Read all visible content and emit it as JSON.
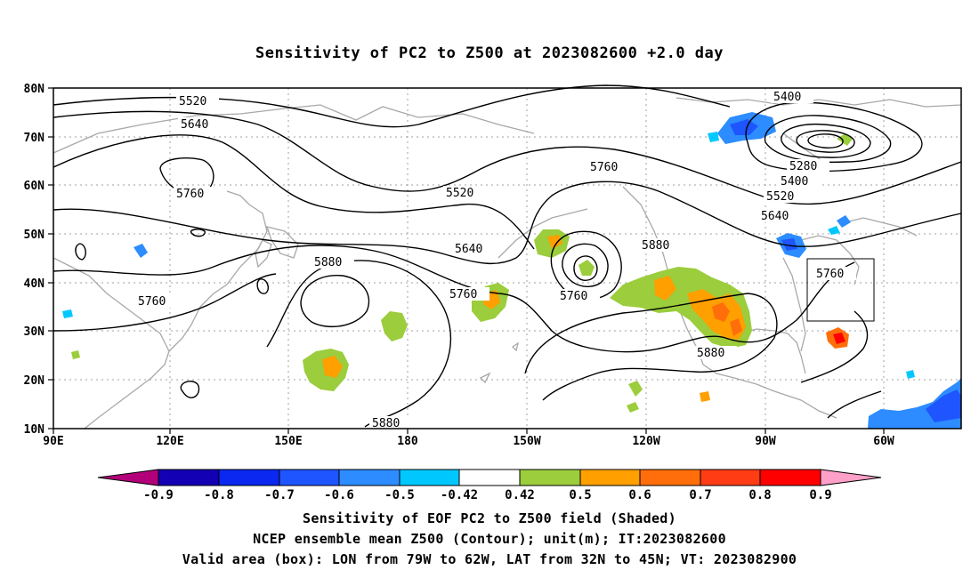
{
  "title": "Sensitivity of PC2 to Z500 at 2023082600 +2.0 day",
  "map": {
    "lat_ticks": [
      "80N",
      "70N",
      "60N",
      "50N",
      "40N",
      "30N",
      "20N",
      "10N"
    ],
    "lon_ticks": [
      "90E",
      "120E",
      "150E",
      "180",
      "150W",
      "120W",
      "90W",
      "60W"
    ],
    "contour_labels": [
      "5400",
      "5520",
      "5640",
      "5760",
      "5880",
      "5280"
    ],
    "valid_box": {
      "lon_from": "79W",
      "lon_to": "62W",
      "lat_from": "32N",
      "lat_to": "45N"
    },
    "colors": {
      "neg_09": "#b3007a",
      "neg_08": "#1400b4",
      "neg_07": "#0a28f0",
      "neg_06": "#1e55ff",
      "neg_05": "#2d8cff",
      "neg_042": "#00c8ff",
      "white": "#ffffff",
      "pos_042": "#9bcd3c",
      "pos_05": "#ff9f00",
      "pos_06": "#ff6e0a",
      "pos_07": "#ff3c14",
      "pos_08": "#ff0000",
      "pos_09": "#ffa0c8"
    }
  },
  "colorbar": {
    "labels": [
      "-0.9",
      "-0.8",
      "-0.7",
      "-0.6",
      "-0.5",
      "-0.42",
      "0.42",
      "0.5",
      "0.6",
      "0.7",
      "0.8",
      "0.9"
    ]
  },
  "caption": {
    "line1": "Sensitivity of EOF PC2 to Z500 field (Shaded)",
    "line2": "NCEP ensemble mean Z500 (Contour); unit(m); IT:2023082600",
    "line3": "Valid area (box): LON from 79W to 62W, LAT from 32N to 45N; VT: 2023082900"
  }
}
